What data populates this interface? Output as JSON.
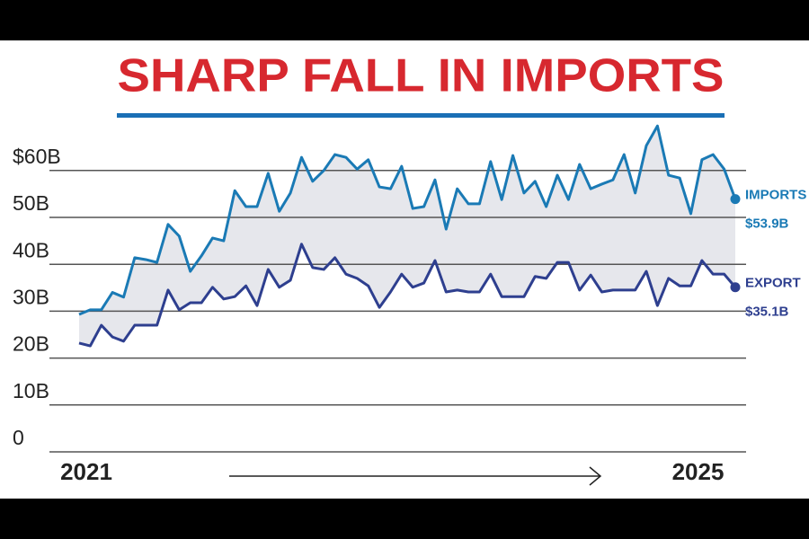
{
  "chart_data": {
    "type": "line",
    "title": "SHARP FALL IN IMPORTS",
    "categories": [
      "2021",
      null,
      null,
      null,
      null,
      null,
      null,
      null,
      null,
      null,
      null,
      null,
      null,
      null,
      null,
      null,
      null,
      null,
      null,
      null,
      null,
      null,
      null,
      null,
      null,
      null,
      null,
      null,
      null,
      null,
      null,
      null,
      null,
      null,
      null,
      null,
      null,
      null,
      null,
      null,
      null,
      null,
      null,
      null,
      null,
      null,
      null,
      null,
      null,
      null,
      null,
      null,
      null,
      null,
      null,
      "2025",
      null,
      null,
      null,
      null
    ],
    "series": [
      {
        "name": "IMPORTS",
        "color": "#1a7ab5",
        "values": [
          29.3,
          30.3,
          30.3,
          34,
          33,
          41.4,
          41,
          40.4,
          48.5,
          46,
          38.5,
          41.8,
          45.6,
          45,
          55.7,
          52.3,
          52.3,
          59.4,
          51.3,
          55.2,
          62.8,
          57.7,
          60,
          63.4,
          62.8,
          60.3,
          62.3,
          56.5,
          56.1,
          60.9,
          51.9,
          52.3,
          58,
          47.5,
          56.1,
          52.9,
          52.9,
          61.9,
          53.8,
          63.2,
          55.2,
          57.7,
          52.3,
          59,
          53.8,
          61.3,
          56.1,
          57.1,
          58,
          63.4,
          55.2,
          65.3,
          69.5,
          59,
          58.4,
          50.8,
          62.3,
          63.4,
          60.3,
          53.9
        ]
      },
      {
        "name": "EXPORT",
        "color": "#2e3f8f",
        "values": [
          23.2,
          22.6,
          27,
          24.5,
          23.6,
          27,
          27,
          27,
          34.5,
          30.3,
          31.8,
          31.8,
          35.1,
          32.6,
          33.1,
          35.4,
          31.2,
          38.9,
          35.1,
          36.6,
          44.3,
          39.3,
          38.9,
          41.4,
          37.9,
          37,
          35.4,
          30.8,
          34.1,
          37.9,
          35.1,
          36,
          40.8,
          34.1,
          34.5,
          34.1,
          34.1,
          37.9,
          33.1,
          33.1,
          33.1,
          37.4,
          37,
          40.4,
          40.4,
          34.5,
          37.7,
          34.1,
          34.5,
          34.5,
          34.5,
          38.5,
          31.2,
          37,
          35.4,
          35.4,
          40.8,
          37.9,
          37.9,
          35.1
        ]
      }
    ],
    "annotations": [
      {
        "text": "IMPORTS",
        "value_label": "$53.9B"
      },
      {
        "text": "EXPORT",
        "value_label": "$35.1B"
      }
    ],
    "ylim": [
      0,
      70
    ],
    "yticks": [
      0,
      {
        "value": 10,
        "label": "10B"
      },
      {
        "value": 20,
        "label": "20B"
      },
      {
        "value": 30,
        "label": "30B"
      },
      {
        "value": 40,
        "label": "40B"
      },
      {
        "value": 50,
        "label": "50B"
      },
      {
        "value": 60,
        "label": "$60B"
      }
    ],
    "grid": true
  }
}
